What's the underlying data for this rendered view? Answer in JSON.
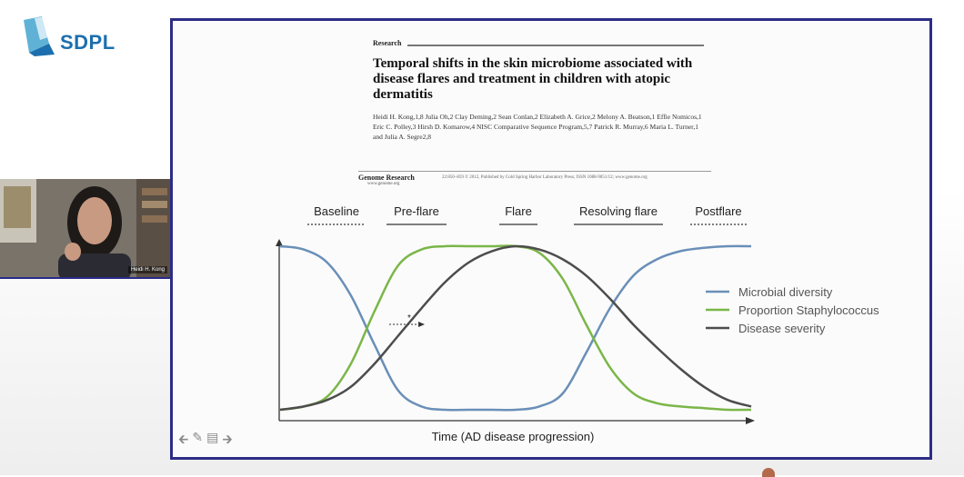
{
  "brand": {
    "logo_text": "SDPL",
    "colors": {
      "primary": "#1c6fae",
      "secondary": "#5fb2d6"
    }
  },
  "participant": {
    "name_tag": "Heidi H. Kong"
  },
  "paper": {
    "section": "Research",
    "title": "Temporal shifts in the skin microbiome associated with disease flares and treatment in children with atopic dermatitis",
    "authors": "Heidi H. Kong,1,8 Julia Oh,2 Clay Deming,2 Sean Conlan,2 Elizabeth A. Grice,2 Melony A. Beatson,1 Effie Nomicos,1 Eric C. Polley,3 Hirsh D. Komarow,4 NISC Comparative Sequence Program,5,7 Patrick R. Murray,6 Maria L. Turner,1 and Julia A. Segre2,8",
    "journal": "Genome Research",
    "journal_url": "www.genome.org",
    "citation": "22:850–859 © 2012, Published by Cold Spring Harbor Laboratory Press; ISSN 1088-9051/12; www.genome.org"
  },
  "chart_data": {
    "type": "line",
    "phases": [
      "Baseline",
      "Pre-flare",
      "Flare",
      "Resolving flare",
      "Postflare"
    ],
    "xlabel": "Time (AD disease progression)",
    "ylabel": "",
    "x": [
      0,
      5,
      10,
      15,
      20,
      25,
      30,
      35,
      40,
      45,
      50,
      55,
      60,
      65,
      70,
      75,
      80,
      85,
      90,
      95,
      100
    ],
    "xlim": [
      0,
      100
    ],
    "ylim": [
      0,
      100
    ],
    "series": [
      {
        "name": "Microbial diversity",
        "color": "#6a8fb8",
        "values": [
          100,
          98,
          90,
          70,
          40,
          12,
          2,
          0,
          0,
          0,
          0,
          2,
          10,
          35,
          62,
          82,
          92,
          97,
          99,
          100,
          100
        ]
      },
      {
        "name": "Proportion Staphylococcus",
        "color": "#7ab648",
        "values": [
          0,
          2,
          8,
          28,
          60,
          88,
          98,
          100,
          100,
          100,
          100,
          96,
          80,
          52,
          26,
          10,
          4,
          2,
          1,
          0,
          0
        ]
      },
      {
        "name": "Disease severity",
        "color": "#4d4d4d",
        "values": [
          0,
          2,
          6,
          14,
          28,
          45,
          62,
          78,
          90,
          97,
          100,
          98,
          92,
          82,
          68,
          52,
          38,
          25,
          14,
          6,
          2
        ]
      }
    ],
    "legend_position": "right",
    "annotations": [
      "*"
    ],
    "grid": false
  },
  "toolbar": {
    "icons": [
      "arrow-left-icon",
      "pen-icon",
      "slideshow-icon",
      "arrow-right-icon"
    ]
  }
}
